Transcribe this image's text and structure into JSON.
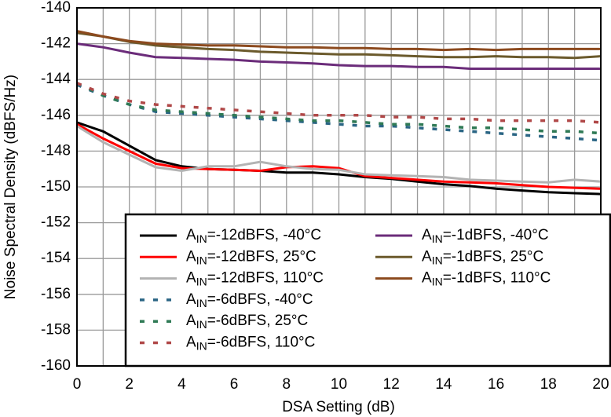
{
  "chart_data": {
    "type": "line",
    "x_label": "DSA Setting (dB)",
    "y_label": "Noise Spectral Density (dBFS/Hz)",
    "x": [
      0,
      1,
      2,
      3,
      4,
      5,
      6,
      7,
      8,
      9,
      10,
      11,
      12,
      13,
      14,
      15,
      16,
      17,
      18,
      19,
      20
    ],
    "xlim": [
      0,
      20
    ],
    "xticks": [
      0,
      2,
      4,
      6,
      8,
      10,
      12,
      14,
      16,
      18,
      20
    ],
    "ylim": [
      -160,
      -140
    ],
    "yticks": [
      -160,
      -158,
      -156,
      -154,
      -152,
      -150,
      -148,
      -146,
      -144,
      -142,
      -140
    ],
    "grid": true,
    "legend": "lower right",
    "series": [
      {
        "name": "AIN=-12dBFS, -40°C",
        "color": "#000000",
        "dashed": false,
        "values": [
          -146.4,
          -146.9,
          -147.7,
          -148.5,
          -148.85,
          -149.0,
          -149.05,
          -149.1,
          -149.2,
          -149.2,
          -149.3,
          -149.45,
          -149.55,
          -149.7,
          -149.85,
          -149.95,
          -150.1,
          -150.2,
          -150.3,
          -150.35,
          -150.4
        ]
      },
      {
        "name": "AIN=-12dBFS, 25°C",
        "color": "#ff0000",
        "dashed": false,
        "values": [
          -146.5,
          -147.3,
          -148.0,
          -148.7,
          -148.95,
          -149.0,
          -149.05,
          -149.1,
          -148.9,
          -148.85,
          -148.95,
          -149.4,
          -149.5,
          -149.6,
          -149.7,
          -149.75,
          -149.8,
          -149.9,
          -150.0,
          -150.05,
          -150.1
        ]
      },
      {
        "name": "AIN=-12dBFS, 110°C",
        "color": "#b3b3b3",
        "dashed": false,
        "values": [
          -146.6,
          -147.5,
          -148.2,
          -148.9,
          -149.1,
          -148.85,
          -148.85,
          -148.6,
          -148.85,
          -149.0,
          -149.05,
          -149.3,
          -149.35,
          -149.4,
          -149.45,
          -149.6,
          -149.65,
          -149.7,
          -149.75,
          -149.6,
          -149.7
        ]
      },
      {
        "name": "AIN=-6dBFS, -40°C",
        "color": "#2a6584",
        "dashed": true,
        "values": [
          -144.3,
          -144.9,
          -145.4,
          -145.8,
          -145.9,
          -146.0,
          -146.1,
          -146.2,
          -146.3,
          -146.4,
          -146.5,
          -146.6,
          -146.6,
          -146.7,
          -146.8,
          -146.9,
          -147.0,
          -147.1,
          -147.2,
          -147.3,
          -147.4
        ]
      },
      {
        "name": "AIN=-6dBFS, 25°C",
        "color": "#2f7a55",
        "dashed": true,
        "values": [
          -144.2,
          -144.9,
          -145.4,
          -145.7,
          -145.8,
          -145.9,
          -146.0,
          -146.1,
          -146.2,
          -146.3,
          -146.3,
          -146.4,
          -146.5,
          -146.5,
          -146.6,
          -146.7,
          -146.7,
          -146.8,
          -146.9,
          -146.9,
          -147.0
        ]
      },
      {
        "name": "AIN=-6dBFS, 110°C",
        "color": "#b04848",
        "dashed": true,
        "values": [
          -144.2,
          -144.8,
          -145.2,
          -145.4,
          -145.5,
          -145.6,
          -145.7,
          -145.8,
          -145.9,
          -146.0,
          -146.0,
          -146.0,
          -146.1,
          -146.1,
          -146.2,
          -146.2,
          -146.3,
          -146.3,
          -146.3,
          -146.3,
          -146.4
        ]
      },
      {
        "name": "AIN=-1dBFS, -40°C",
        "color": "#6b2c7a",
        "dashed": false,
        "values": [
          -142.0,
          -142.2,
          -142.5,
          -142.75,
          -142.8,
          -142.85,
          -142.9,
          -143.0,
          -143.05,
          -143.1,
          -143.2,
          -143.25,
          -143.25,
          -143.3,
          -143.3,
          -143.4,
          -143.4,
          -143.4,
          -143.4,
          -143.4,
          -143.4
        ]
      },
      {
        "name": "AIN=-1dBFS, 25°C",
        "color": "#6b5a2c",
        "dashed": false,
        "values": [
          -141.4,
          -141.6,
          -141.9,
          -142.1,
          -142.2,
          -142.3,
          -142.35,
          -142.45,
          -142.5,
          -142.55,
          -142.6,
          -142.6,
          -142.65,
          -142.7,
          -142.75,
          -142.75,
          -142.7,
          -142.75,
          -142.75,
          -142.8,
          -142.7
        ]
      },
      {
        "name": "AIN=-1dBFS, 110°C",
        "color": "#8c4a1e",
        "dashed": false,
        "values": [
          -141.3,
          -141.6,
          -141.85,
          -142.0,
          -142.05,
          -142.1,
          -142.1,
          -142.15,
          -142.2,
          -142.2,
          -142.25,
          -142.25,
          -142.3,
          -142.3,
          -142.35,
          -142.3,
          -142.35,
          -142.3,
          -142.3,
          -142.3,
          -142.3
        ]
      }
    ]
  }
}
